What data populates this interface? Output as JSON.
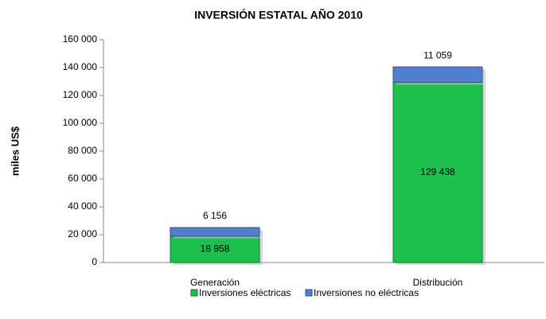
{
  "chart_data": {
    "type": "stacked_bar",
    "title": "INVERSIÓN ESTATAL AÑO 2010",
    "y_label": "miles US$",
    "categories": [
      "Generación",
      "Distribución"
    ],
    "series": [
      {
        "name": "Inversiones eléctricas",
        "color": "#1fbf4f",
        "values": [
          18958,
          129438
        ],
        "value_labels": [
          "18 958",
          "129 438"
        ]
      },
      {
        "name": "Inversiones no eléctricas",
        "color": "#4f7fcf",
        "values": [
          6156,
          11059
        ],
        "value_labels": [
          "6 156",
          "11 059"
        ]
      }
    ],
    "ylim": [
      0,
      160000
    ],
    "yticks": [
      0,
      {
        "value": 20000,
        "label": "20 000"
      },
      {
        "value": 40000,
        "label": "40 000"
      },
      {
        "value": 60000,
        "label": "60 000"
      },
      {
        "value": 80000,
        "label": "80 000"
      },
      {
        "value": 100000,
        "label": "100 000"
      },
      {
        "value": 120000,
        "label": "120 000"
      },
      {
        "value": 140000,
        "label": "140 000"
      },
      {
        "value": 160000,
        "label": "160 000"
      }
    ],
    "grid": false,
    "legend": "bottom"
  }
}
